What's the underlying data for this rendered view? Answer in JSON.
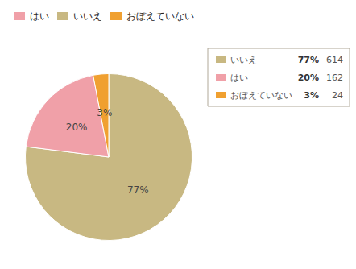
{
  "chart_data": {
    "type": "pie",
    "categories": [
      "いいえ",
      "はい",
      "おぼえていない"
    ],
    "values": [
      77,
      20,
      3
    ],
    "value_labels": [
      "77%",
      "20%",
      "3%"
    ],
    "counts": [
      614,
      162,
      24
    ],
    "colors": [
      "#c8b882",
      "#f0a0a8",
      "#f0a030"
    ],
    "legend_entries": [
      "はい",
      "いいえ",
      "おぼえていない"
    ],
    "data_labels": true
  }
}
